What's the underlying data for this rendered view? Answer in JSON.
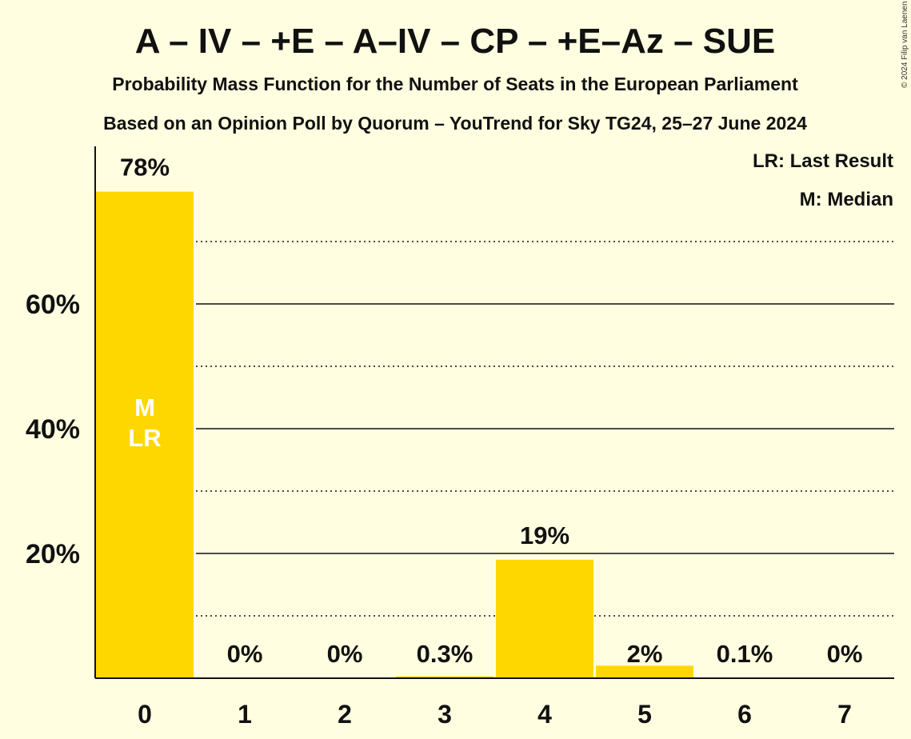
{
  "header": {
    "title": "A – IV – +E – A–IV – CP – +E–Az – SUE",
    "subtitle1": "Probability Mass Function for the Number of Seats in the European Parliament",
    "subtitle2": "Based on an Opinion Poll by Quorum – YouTrend for Sky TG24, 25–27 June 2024"
  },
  "legend": {
    "last_result": "LR: Last Result",
    "median": "M: Median"
  },
  "copyright": "© 2024 Filip van Laenen",
  "colors": {
    "bar": "#FFD700",
    "background": "#FFFEE0",
    "text": "#111111",
    "bar_marker_text": "#FFFFFF"
  },
  "chart_data": {
    "type": "bar",
    "categories": [
      "0",
      "1",
      "2",
      "3",
      "4",
      "5",
      "6",
      "7"
    ],
    "values": [
      78,
      0,
      0,
      0.3,
      19,
      2,
      0.1,
      0
    ],
    "value_labels": [
      "78%",
      "0%",
      "0%",
      "0.3%",
      "19%",
      "2%",
      "0.1%",
      "0%"
    ],
    "bar_markers": {
      "0": [
        "M",
        "LR"
      ]
    },
    "ylim": [
      0,
      85
    ],
    "yticks": [
      20,
      40,
      60
    ],
    "ytick_labels": [
      "20%",
      "40%",
      "60%"
    ],
    "dotted_gridlines": [
      10,
      30,
      50,
      70
    ],
    "grid": true,
    "legend_position": "top-right",
    "xlabel": "",
    "ylabel": ""
  }
}
